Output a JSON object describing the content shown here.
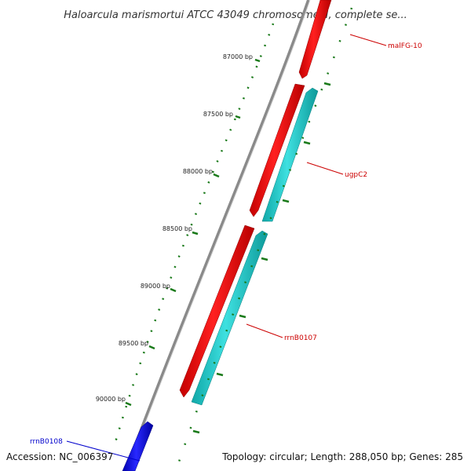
{
  "title": "Haloarcula marismortui ATCC 43049 chromosome II, complete se...",
  "footer": {
    "accession": "Accession: NC_006397",
    "summary": "Topology: circular; Length: 288,050 bp; Genes: 285"
  },
  "colors": {
    "backbone": "#8a8a8a",
    "tick": "#1a7a1a",
    "forward_gene": "#ff1111",
    "reverse_gene": "#22cccc",
    "other_gene": "#1010ff",
    "forward_label": "#cc0000",
    "other_label": "#0000cc"
  },
  "ticks": [
    {
      "label": "87000 bp",
      "bp": 87000
    },
    {
      "label": "87500 bp",
      "bp": 87500
    },
    {
      "label": "88000 bp",
      "bp": 88000
    },
    {
      "label": "88500 bp",
      "bp": 88500
    },
    {
      "label": "89000 bp",
      "bp": 89000
    },
    {
      "label": "89500 bp",
      "bp": 89500
    },
    {
      "label": "90000 bp",
      "bp": 90000
    }
  ],
  "gene_labels": [
    {
      "name": "malFG-10"
    },
    {
      "name": "ugpC2"
    },
    {
      "name": "rrnB0107"
    },
    {
      "name": "rrnB0108"
    }
  ]
}
